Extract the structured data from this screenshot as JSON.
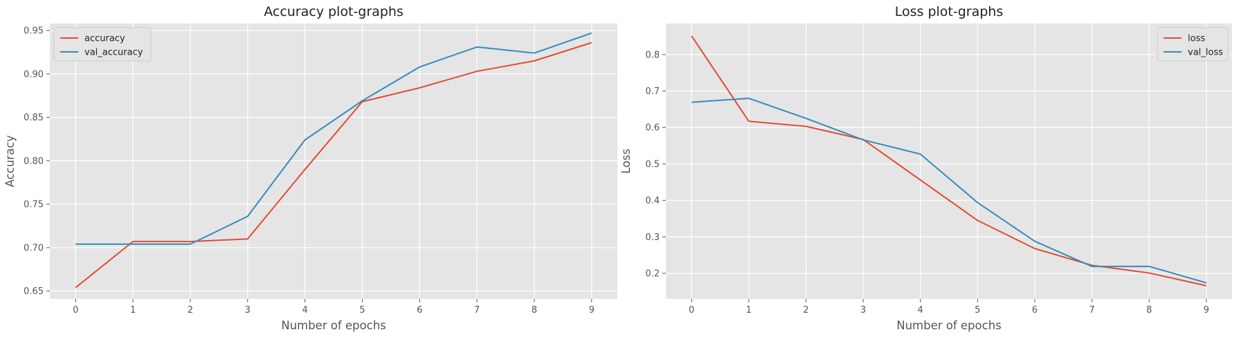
{
  "chart_data": [
    {
      "type": "line",
      "title": "Accuracy plot-graphs",
      "xlabel": "Number of epochs",
      "ylabel": "Accuracy",
      "x": [
        0,
        1,
        2,
        3,
        4,
        5,
        6,
        7,
        8,
        9
      ],
      "xticks": [
        "0",
        "1",
        "2",
        "3",
        "4",
        "5",
        "6",
        "7",
        "8",
        "9"
      ],
      "yticks": [
        "0.65",
        "0.70",
        "0.75",
        "0.80",
        "0.85",
        "0.90",
        "0.95"
      ],
      "ylim": [
        0.641,
        0.958
      ],
      "xlim": [
        -0.45,
        9.45
      ],
      "grid": true,
      "legend_position": "top-left",
      "series": [
        {
          "name": "accuracy",
          "color": "#E24A33",
          "values": [
            0.654,
            0.707,
            0.707,
            0.71,
            0.79,
            0.868,
            0.884,
            0.903,
            0.915,
            0.936
          ]
        },
        {
          "name": "val_accuracy",
          "color": "#348ABD",
          "values": [
            0.704,
            0.704,
            0.704,
            0.736,
            0.824,
            0.869,
            0.908,
            0.931,
            0.924,
            0.947
          ]
        }
      ]
    },
    {
      "type": "line",
      "title": "Loss plot-graphs",
      "xlabel": "Number of epochs",
      "ylabel": "Loss",
      "x": [
        0,
        1,
        2,
        3,
        4,
        5,
        6,
        7,
        8,
        9
      ],
      "xticks": [
        "0",
        "1",
        "2",
        "3",
        "4",
        "5",
        "6",
        "7",
        "8",
        "9"
      ],
      "yticks": [
        "0.2",
        "0.3",
        "0.4",
        "0.5",
        "0.6",
        "0.7",
        "0.8"
      ],
      "ylim": [
        0.13,
        0.885
      ],
      "xlim": [
        -0.45,
        9.45
      ],
      "grid": true,
      "legend_position": "top-right",
      "series": [
        {
          "name": "loss",
          "color": "#E24A33",
          "values": [
            0.851,
            0.617,
            0.603,
            0.567,
            0.456,
            0.345,
            0.268,
            0.222,
            0.201,
            0.166
          ]
        },
        {
          "name": "val_loss",
          "color": "#348ABD",
          "values": [
            0.669,
            0.68,
            0.625,
            0.566,
            0.527,
            0.394,
            0.288,
            0.219,
            0.219,
            0.174
          ]
        }
      ]
    }
  ]
}
